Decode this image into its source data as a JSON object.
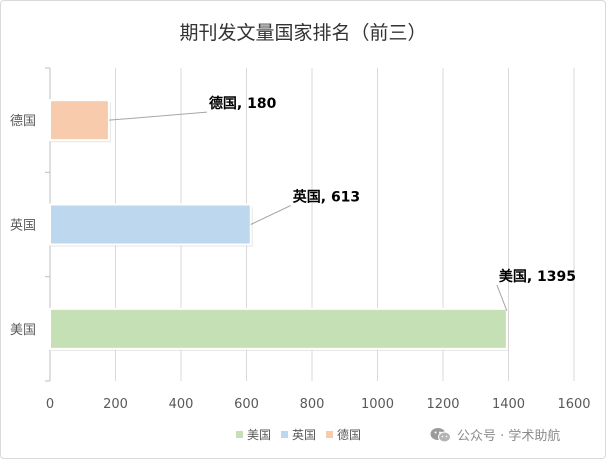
{
  "chart_data": {
    "type": "bar",
    "orientation": "horizontal",
    "title": "期刊发文量国家排名（前三）",
    "categories": [
      "德国",
      "英国",
      "美国"
    ],
    "values": [
      180,
      613,
      1395
    ],
    "data_labels": [
      "德国, 180",
      "英国, 613",
      "美国, 1395"
    ],
    "colors": [
      "#f8cbad",
      "#bdd7ee",
      "#c5e0b4"
    ],
    "xlim": [
      0,
      1600
    ],
    "xticks": [
      "0",
      "200",
      "400",
      "600",
      "800",
      "1000",
      "1200",
      "1400",
      "1600"
    ],
    "grid": true,
    "legend_position": "bottom",
    "legend": [
      {
        "label": "美国",
        "color": "#c5e0b4"
      },
      {
        "label": "英国",
        "color": "#bdd7ee"
      },
      {
        "label": "德国",
        "color": "#f8cbad"
      }
    ]
  },
  "watermark": {
    "icon": "wechat-icon",
    "text": "公众号 · 学术助航"
  }
}
